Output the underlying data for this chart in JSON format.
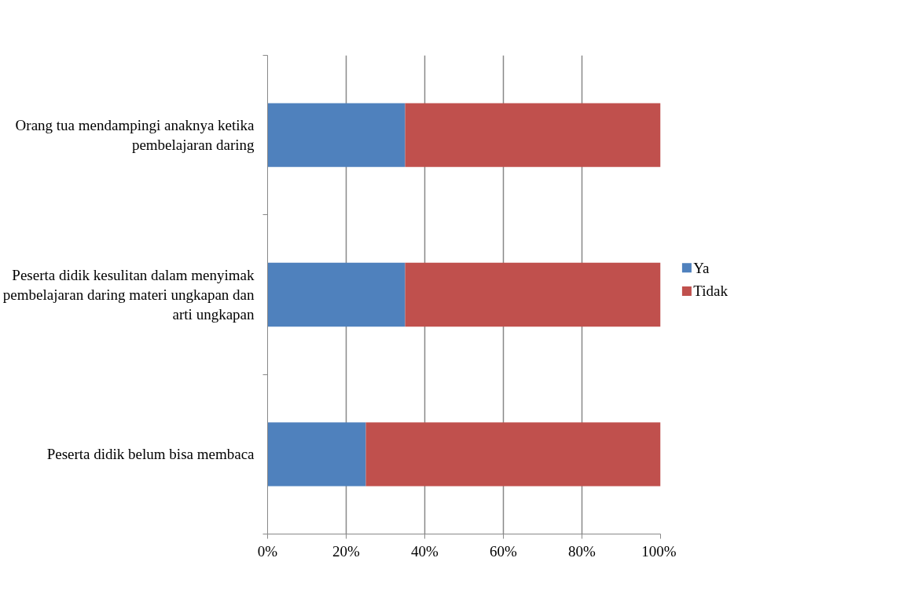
{
  "chart_data": {
    "type": "bar",
    "orientation": "horizontal",
    "stacked": true,
    "categories": [
      "Orang tua mendampingi anaknya ketika pembelajaran daring",
      "Peserta didik kesulitan dalam menyimak pembelajaran daring materi ungkapan dan arti ungkapan",
      "Peserta didik belum bisa membaca"
    ],
    "series": [
      {
        "name": "Ya",
        "color": "#4f81bd",
        "values": [
          35,
          35,
          25
        ]
      },
      {
        "name": "Tidak",
        "color": "#c0504d",
        "values": [
          65,
          65,
          75
        ]
      }
    ],
    "xlim": [
      0,
      100
    ],
    "xticks": [
      {
        "value": 0,
        "label": "0%"
      },
      {
        "value": 20,
        "label": "20%"
      },
      {
        "value": 40,
        "label": "40%"
      },
      {
        "value": 60,
        "label": "60%"
      },
      {
        "value": 80,
        "label": "80%"
      },
      {
        "value": 100,
        "label": "100%"
      }
    ],
    "grid": "x",
    "legend": "right"
  }
}
